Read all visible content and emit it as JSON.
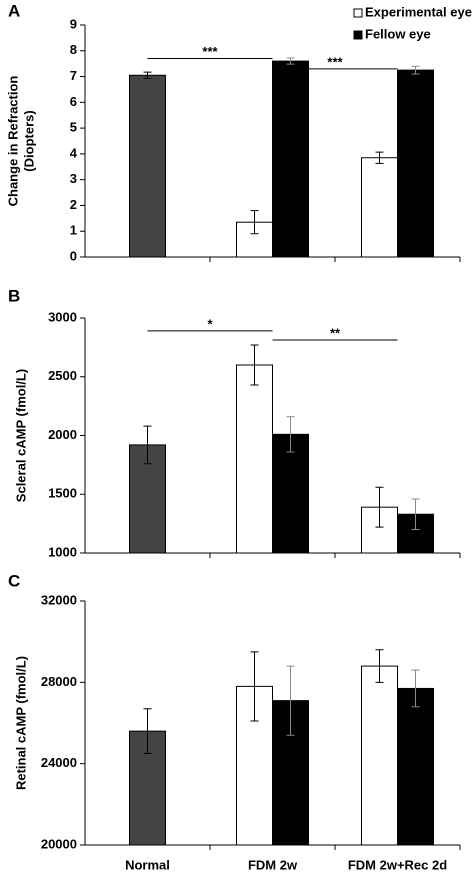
{
  "chart_data": [
    {
      "type": "bar",
      "label": "A",
      "ylabel": [
        "Change in Refraction",
        "(Diopters)"
      ],
      "ylim": [
        0,
        9
      ],
      "yticks": [
        0,
        1,
        2,
        3,
        4,
        5,
        6,
        7,
        8,
        9
      ],
      "legend": "top-right",
      "series": [
        {
          "color": "#444444",
          "values": [
            7.05,
            null,
            null
          ],
          "errors": [
            0.12,
            null,
            null
          ]
        },
        {
          "name": "Experimental eye",
          "color": "#ffffff",
          "values": [
            null,
            1.35,
            3.85
          ],
          "errors": [
            null,
            0.45,
            0.22
          ]
        },
        {
          "name": "Fellow eye",
          "color": "#000000",
          "values": [
            null,
            7.6,
            7.25
          ],
          "errors": [
            null,
            0.12,
            0.15
          ]
        }
      ],
      "annotations": [
        {
          "text": "***",
          "from": 0,
          "to": 1,
          "y": 7.7
        },
        {
          "text": "***",
          "from": 1,
          "to": 2,
          "y": 7.3
        }
      ]
    },
    {
      "type": "bar",
      "label": "B",
      "ylabel": [
        "Scleral cAMP (fmol/L)"
      ],
      "ylim": [
        1000,
        3000
      ],
      "yticks": [
        1000,
        1500,
        2000,
        2500,
        3000
      ],
      "series": [
        {
          "color": "#444444",
          "values": [
            1920,
            null,
            null
          ],
          "errors": [
            160,
            null,
            null
          ]
        },
        {
          "color": "#ffffff",
          "values": [
            null,
            2600,
            1390
          ],
          "errors": [
            null,
            170,
            170
          ]
        },
        {
          "color": "#000000",
          "values": [
            null,
            2010,
            1330
          ],
          "errors": [
            null,
            150,
            130
          ]
        }
      ],
      "annotations": [
        {
          "text": "*",
          "from": 0,
          "to": 1,
          "y": 2890
        },
        {
          "text": "**",
          "from": 1,
          "to": 2,
          "y": 2813
        }
      ]
    },
    {
      "type": "bar",
      "label": "C",
      "ylabel": [
        "Retinal cAMP (fmol/L)"
      ],
      "ylim": [
        20000,
        32000
      ],
      "yticks": [
        20000,
        24000,
        28000,
        32000
      ],
      "categories": [
        "Normal",
        "FDM 2w",
        "FDM 2w+Rec 2d"
      ],
      "series": [
        {
          "color": "#444444",
          "values": [
            25600,
            null,
            null
          ],
          "errors": [
            1100,
            null,
            null
          ]
        },
        {
          "color": "#ffffff",
          "values": [
            null,
            27800,
            28800
          ],
          "errors": [
            null,
            1700,
            800
          ]
        },
        {
          "color": "#000000",
          "values": [
            null,
            27100,
            27700
          ],
          "errors": [
            null,
            1700,
            900
          ]
        }
      ]
    }
  ]
}
